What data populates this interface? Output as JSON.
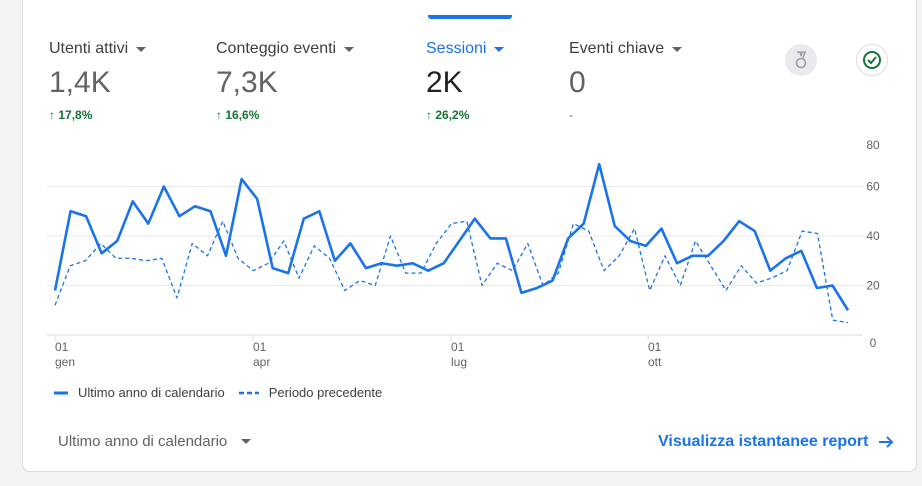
{
  "metrics": [
    {
      "label": "Utenti attivi",
      "value": "1,4K",
      "delta": "17,8%",
      "active": false
    },
    {
      "label": "Conteggio eventi",
      "value": "7,3K",
      "delta": "16,6%",
      "active": false
    },
    {
      "label": "Sessioni",
      "value": "2K",
      "delta": "26,2%",
      "active": true
    },
    {
      "label": "Eventi chiave",
      "value": "0",
      "delta": "-",
      "active": false
    }
  ],
  "icons": {
    "insights": "medal-icon",
    "status": "check-circle-icon"
  },
  "colors": {
    "accent": "#1a73e8",
    "positive": "#137333"
  },
  "chart_data": {
    "type": "line",
    "ylim": [
      0,
      80
    ],
    "yticks": [
      "0",
      "20",
      "40",
      "60",
      "80"
    ],
    "xticks": [
      {
        "day": "01",
        "month": "gen"
      },
      {
        "day": "01",
        "month": "apr"
      },
      {
        "day": "01",
        "month": "lug"
      },
      {
        "day": "01",
        "month": "ott"
      }
    ],
    "grid": true,
    "legend_placement": "bottom-left",
    "series": [
      {
        "name": "Ultimo anno di calendario",
        "style": "solid",
        "values": [
          18,
          50,
          48,
          33,
          38,
          54,
          45,
          60,
          48,
          52,
          50,
          32,
          63,
          55,
          27,
          25,
          47,
          50,
          30,
          37,
          27,
          29,
          28,
          29,
          26,
          29,
          38,
          47,
          39,
          39,
          17,
          19,
          22,
          39,
          45,
          69,
          44,
          38,
          36,
          43,
          29,
          32,
          32,
          38,
          46,
          42,
          26,
          31,
          34,
          19,
          20,
          10
        ]
      },
      {
        "name": "Periodo precedente",
        "style": "dashed",
        "values": [
          12,
          28,
          30,
          37,
          31,
          31,
          30,
          31,
          15,
          37,
          32,
          46,
          31,
          26,
          29,
          38,
          23,
          36,
          31,
          18,
          22,
          20,
          40,
          25,
          25,
          37,
          45,
          46,
          20,
          29,
          26,
          37,
          20,
          25,
          45,
          42,
          26,
          32,
          43,
          18,
          32,
          20,
          38,
          28,
          18,
          28,
          21,
          23,
          26,
          42,
          41,
          6,
          5
        ]
      }
    ]
  },
  "footer": {
    "range_label": "Ultimo anno di calendario",
    "link_label": "Visualizza istantanee report"
  }
}
